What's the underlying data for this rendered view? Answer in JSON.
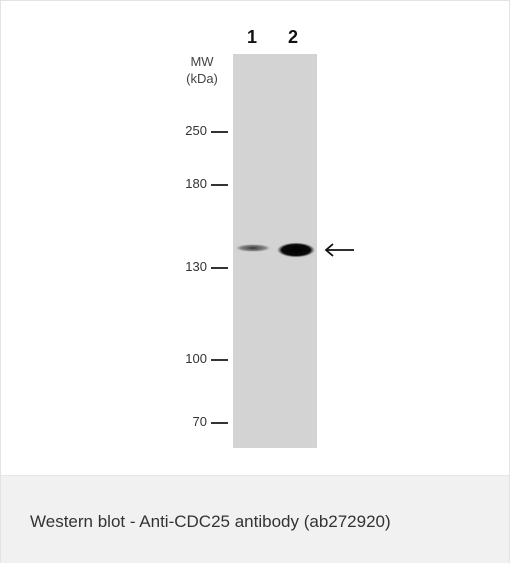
{
  "figure": {
    "mw_title_line1": "MW",
    "mw_title_line2": "(kDa)",
    "lanes": [
      "1",
      "2"
    ],
    "markers": [
      "250",
      "180",
      "130",
      "100",
      "70"
    ]
  },
  "caption": "Western blot - Anti-CDC25 antibody (ab272920)"
}
